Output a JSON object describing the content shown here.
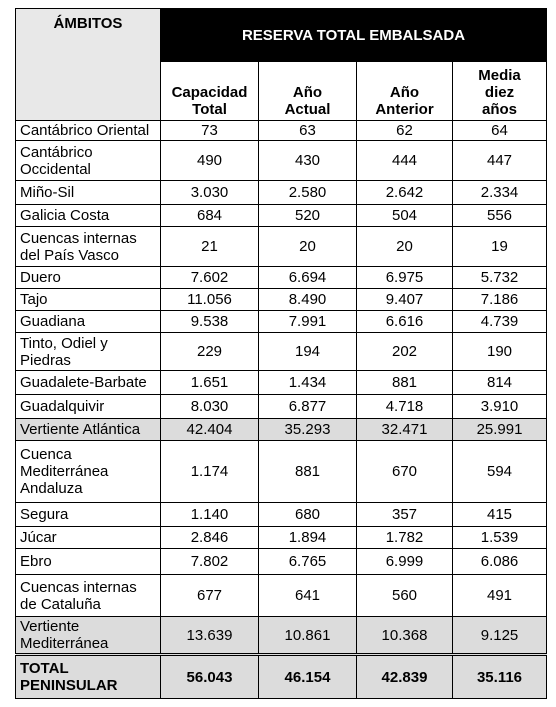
{
  "header": {
    "group_title": "RESERVA TOTAL EMBALSADA",
    "row_header": "ÁMBITOS",
    "columns": [
      "Capacidad\nTotal",
      "Año\nActual",
      "Año\nAnterior",
      "Media\ndiez\naños"
    ]
  },
  "table": {
    "rows": [
      [
        "Cantábrico Oriental",
        "73",
        "63",
        "62",
        "64"
      ],
      [
        "Cantábrico\nOccidental",
        "490",
        "430",
        "444",
        "447"
      ],
      [
        "Miño-Sil",
        "3.030",
        "2.580",
        "2.642",
        "2.334"
      ],
      [
        "Galicia Costa",
        "684",
        "520",
        "504",
        "556"
      ],
      [
        "Cuencas internas\ndel País Vasco",
        "21",
        "20",
        "20",
        "19"
      ],
      [
        "Duero",
        "7.602",
        "6.694",
        "6.975",
        "5.732"
      ],
      [
        "Tajo",
        "11.056",
        "8.490",
        "9.407",
        "7.186"
      ],
      [
        "Guadiana",
        "9.538",
        "7.991",
        "6.616",
        "4.739"
      ],
      [
        "Tinto, Odiel y\nPiedras",
        "229",
        "194",
        "202",
        "190"
      ],
      [
        "Guadalete-Barbate",
        "1.651",
        "1.434",
        "881",
        "814"
      ],
      [
        "Guadalquivir",
        "8.030",
        "6.877",
        "4.718",
        "3.910"
      ],
      [
        "Vertiente Atlántica",
        "42.404",
        "35.293",
        "32.471",
        "25.991"
      ],
      [
        "Cuenca\nMediterránea\nAndaluza",
        "1.174",
        "881",
        "670",
        "594"
      ],
      [
        "Segura",
        "1.140",
        "680",
        "357",
        "415"
      ],
      [
        "Júcar",
        "2.846",
        "1.894",
        "1.782",
        "1.539"
      ],
      [
        "Ebro",
        "7.802",
        "6.765",
        "6.999",
        "6.086"
      ],
      [
        "Cuencas internas\nde Cataluña",
        "677",
        "641",
        "560",
        "491"
      ],
      [
        "Vertiente\nMediterránea",
        "13.639",
        "10.861",
        "10.368",
        "9.125"
      ]
    ],
    "total": [
      "TOTAL\nPENINSULAR",
      "56.043",
      "46.154",
      "42.839",
      "35.116"
    ]
  }
}
